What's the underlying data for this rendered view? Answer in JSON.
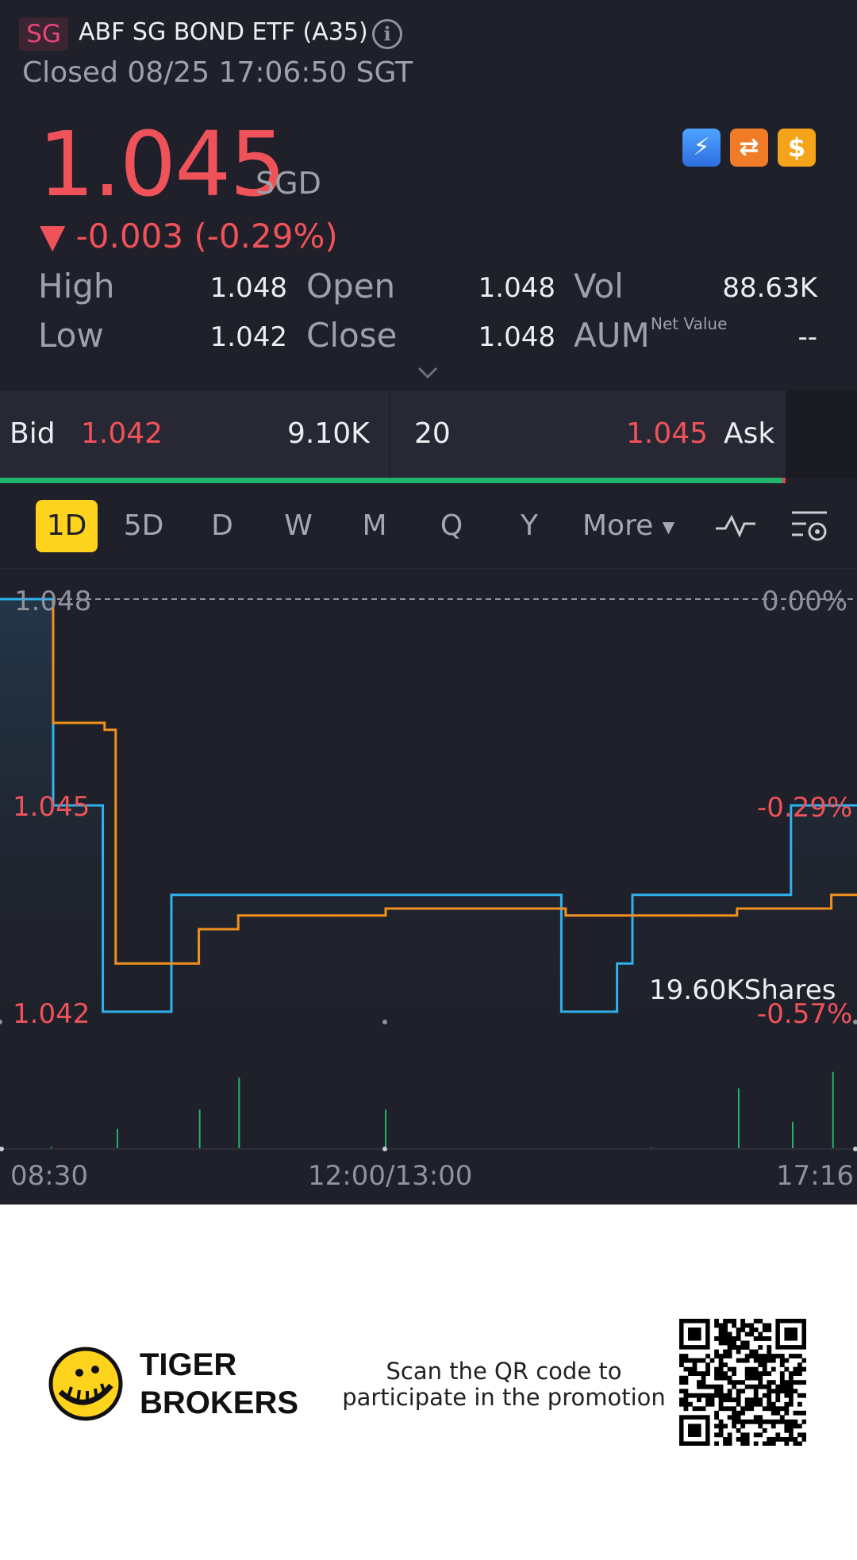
{
  "header": {
    "market": "SG",
    "name": "ABF SG BOND ETF (A35)",
    "status": "Closed 08/25 17:06:50 SGT"
  },
  "quote": {
    "price": "1.045",
    "currency": "SGD",
    "change": "▼ -0.003 (-0.29%)"
  },
  "badges": [
    "lightning-icon",
    "exchange-icon",
    "dollar-icon"
  ],
  "stats": {
    "high_label": "High",
    "high": "1.048",
    "low_label": "Low",
    "low": "1.042",
    "open_label": "Open",
    "open": "1.048",
    "close_label": "Close",
    "close": "1.048",
    "vol_label": "Vol",
    "vol": "88.63K",
    "aum_label": "AUM",
    "net_value_label": "Net Value",
    "aum": "--"
  },
  "orderbook": {
    "bid_label": "Bid",
    "bid_price": "1.042",
    "bid_size": "9.10K",
    "ask_size": "20",
    "ask_price": "1.045",
    "ask_label": "Ask",
    "bid_ratio": 0.996
  },
  "tabs": [
    "1D",
    "5D",
    "D",
    "W",
    "M",
    "Q",
    "Y",
    "More"
  ],
  "active_tab": "1D",
  "chart_data": {
    "type": "line",
    "y_left_labels": [
      "1.048",
      "1.045",
      "1.042"
    ],
    "y_right_labels": [
      "0.00%",
      "-0.29%",
      "-0.57%"
    ],
    "x_labels": [
      "08:30",
      "12:00/13:00",
      "17:16"
    ],
    "ylim": [
      1.042,
      1.048
    ],
    "reference_price": 1.048,
    "volume_label": "19.60KShares",
    "series": [
      {
        "color": "#2fb2ee",
        "points": [
          [
            0,
            1.048
          ],
          [
            0.062,
            1.048
          ],
          [
            0.062,
            1.045
          ],
          [
            0.12,
            1.045
          ],
          [
            0.12,
            1.042
          ],
          [
            0.2,
            1.042
          ],
          [
            0.2,
            1.0437
          ],
          [
            0.655,
            1.0437
          ],
          [
            0.655,
            1.042
          ],
          [
            0.72,
            1.042
          ],
          [
            0.72,
            1.0427
          ],
          [
            0.738,
            1.0427
          ],
          [
            0.738,
            1.0437
          ],
          [
            0.923,
            1.0437
          ],
          [
            0.923,
            1.045
          ],
          [
            1.0,
            1.045
          ]
        ]
      },
      {
        "color": "#f0911e",
        "points": [
          [
            0.062,
            1.048
          ],
          [
            0.062,
            1.0462
          ],
          [
            0.122,
            1.0462
          ],
          [
            0.122,
            1.0461
          ],
          [
            0.135,
            1.0461
          ],
          [
            0.135,
            1.0427
          ],
          [
            0.232,
            1.0427
          ],
          [
            0.232,
            1.0432
          ],
          [
            0.278,
            1.0432
          ],
          [
            0.278,
            1.0434
          ],
          [
            0.45,
            1.0434
          ],
          [
            0.45,
            1.0435
          ],
          [
            0.66,
            1.0435
          ],
          [
            0.66,
            1.0434
          ],
          [
            0.86,
            1.0434
          ],
          [
            0.86,
            1.0435
          ],
          [
            0.97,
            1.0435
          ],
          [
            0.97,
            1.0437
          ],
          [
            1.0,
            1.0437
          ]
        ]
      }
    ],
    "volume_bars": [
      [
        0.06,
        0.03
      ],
      [
        0.137,
        0.28
      ],
      [
        0.233,
        0.55
      ],
      [
        0.279,
        1.0
      ],
      [
        0.45,
        0.55
      ],
      [
        0.76,
        0.02
      ],
      [
        0.862,
        0.85
      ],
      [
        0.925,
        0.38
      ],
      [
        0.972,
        1.08
      ]
    ]
  },
  "footer": {
    "brand_line1": "TIGER",
    "brand_line2": "BROKERS",
    "promo": "Scan the QR code to participate in the promotion"
  }
}
